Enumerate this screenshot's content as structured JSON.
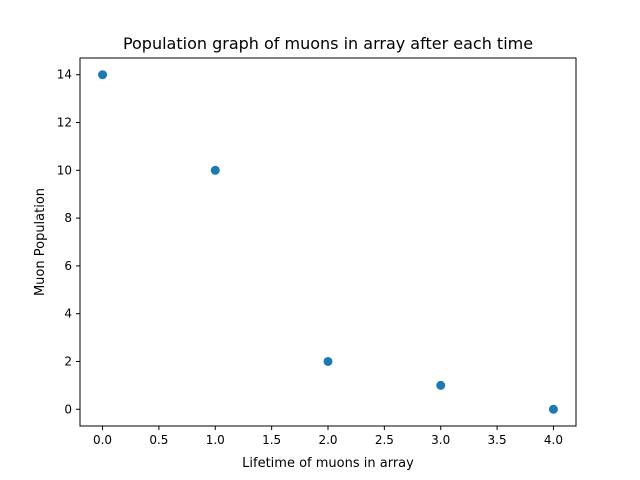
{
  "chart_data": {
    "type": "scatter",
    "title": "Population graph of muons in array after each time",
    "xlabel": "Lifetime of muons in array",
    "ylabel": "Muon Population",
    "x": [
      0,
      1,
      2,
      3,
      4
    ],
    "y": [
      14,
      10,
      2,
      1,
      0
    ],
    "xlim": [
      -0.2,
      4.2
    ],
    "ylim": [
      -0.7,
      14.7
    ],
    "x_ticks": [
      0.0,
      0.5,
      1.0,
      1.5,
      2.0,
      2.5,
      3.0,
      3.5,
      4.0
    ],
    "x_tick_labels": [
      "0.0",
      "0.5",
      "1.0",
      "1.5",
      "2.0",
      "2.5",
      "3.0",
      "3.5",
      "4.0"
    ],
    "y_ticks": [
      0,
      2,
      4,
      6,
      8,
      10,
      12,
      14
    ],
    "y_tick_labels": [
      "0",
      "2",
      "4",
      "6",
      "8",
      "10",
      "12",
      "14"
    ],
    "grid": false,
    "marker_color": "#1f77b4"
  }
}
